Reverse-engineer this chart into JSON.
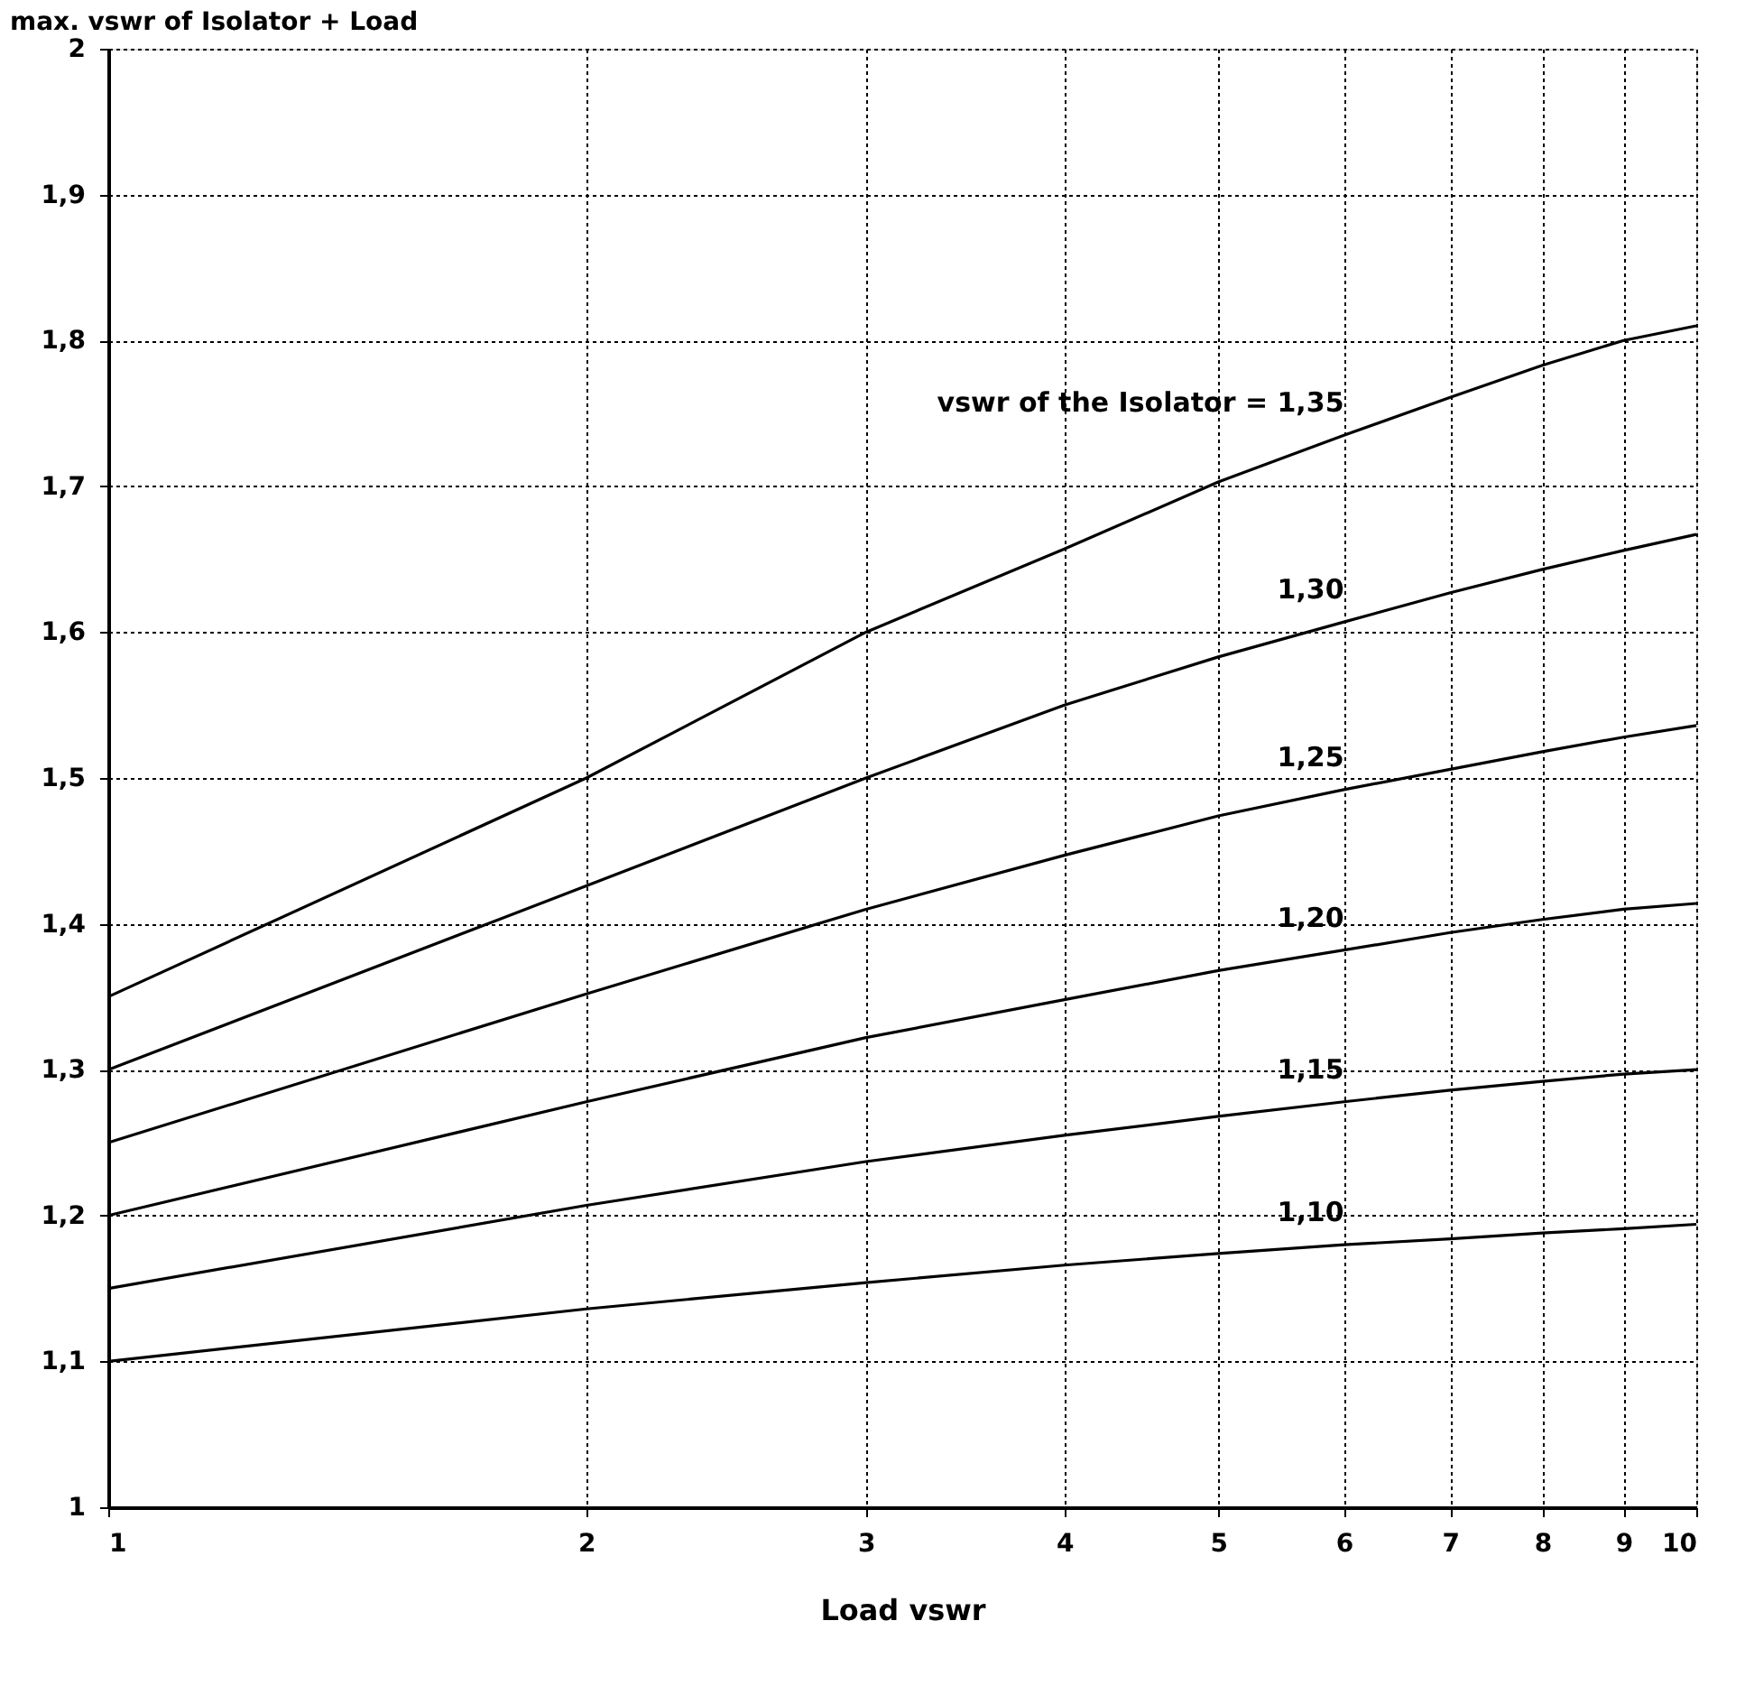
{
  "chart_data": {
    "type": "line",
    "xlabel": "Load vswr",
    "ylabel": "max. vswr of Isolator + Load",
    "x": [
      1,
      2,
      3,
      4,
      5,
      6,
      7,
      8,
      9,
      10
    ],
    "series": [
      {
        "name": "vswr of the Isolator  = 1,35",
        "color": "#000000",
        "values": [
          1.35,
          1.5,
          1.6,
          1.657,
          1.703,
          1.735,
          1.761,
          1.783,
          1.8,
          1.81
        ]
      },
      {
        "name": "1,30",
        "color": "#000000",
        "values": [
          1.3,
          1.426,
          1.5,
          1.55,
          1.583,
          1.607,
          1.627,
          1.643,
          1.656,
          1.667
        ]
      },
      {
        "name": "1,25",
        "color": "#000000",
        "values": [
          1.25,
          1.352,
          1.41,
          1.447,
          1.474,
          1.492,
          1.506,
          1.518,
          1.528,
          1.536
        ]
      },
      {
        "name": "1,20",
        "color": "#000000",
        "values": [
          1.2,
          1.278,
          1.322,
          1.348,
          1.368,
          1.382,
          1.394,
          1.403,
          1.41,
          1.414
        ]
      },
      {
        "name": "1,15",
        "color": "#000000",
        "values": [
          1.15,
          1.207,
          1.237,
          1.255,
          1.268,
          1.278,
          1.286,
          1.292,
          1.297,
          1.3
        ]
      },
      {
        "name": "1,10",
        "color": "#000000",
        "values": [
          1.1,
          1.136,
          1.154,
          1.166,
          1.174,
          1.18,
          1.184,
          1.188,
          1.191,
          1.194
        ]
      }
    ],
    "log": "x",
    "xlim": [
      1,
      10
    ],
    "xticks": [
      1,
      2,
      3,
      4,
      5,
      6,
      7,
      8,
      9,
      10
    ],
    "ylim": [
      1,
      2
    ],
    "yticks": [
      1,
      {
        "value": 1.1,
        "label": "1,1"
      },
      {
        "value": 1.2,
        "label": "1,2"
      },
      {
        "value": 1.3,
        "label": "1,3"
      },
      {
        "value": 1.4,
        "label": "1,4"
      },
      {
        "value": 1.5,
        "label": "1,5"
      },
      {
        "value": 1.6,
        "label": "1,6"
      },
      {
        "value": 1.7,
        "label": "1,7"
      },
      {
        "value": 1.8,
        "label": "1,8"
      },
      {
        "value": 1.9,
        "label": "1,9"
      },
      2
    ],
    "grid": true,
    "legend": false,
    "marker": "none",
    "line_style": "solid"
  }
}
